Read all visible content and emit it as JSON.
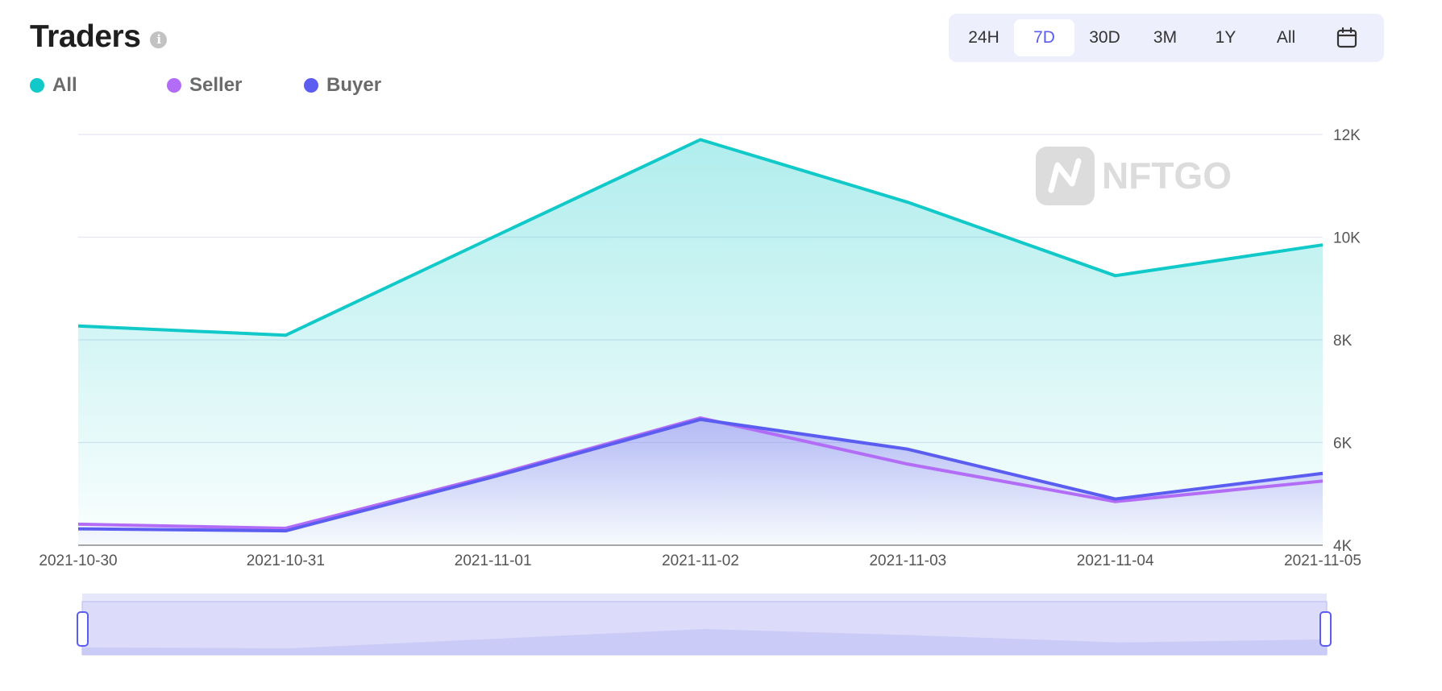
{
  "header": {
    "title": "Traders"
  },
  "legend": [
    {
      "label": "All",
      "color": "#12c9c9"
    },
    {
      "label": "Seller",
      "color": "#b26cf5"
    },
    {
      "label": "Buyer",
      "color": "#5b5cf0"
    }
  ],
  "range_buttons": [
    "24H",
    "7D",
    "30D",
    "3M",
    "1Y",
    "All"
  ],
  "range_selected": "7D",
  "watermark": "NFTGO",
  "chart_data": {
    "type": "area",
    "x": [
      "2021-10-30",
      "2021-10-31",
      "2021-11-01",
      "2021-11-02",
      "2021-11-03",
      "2021-11-04",
      "2021-11-05"
    ],
    "series": [
      {
        "name": "All",
        "color": "#12c9c9",
        "values": [
          8270,
          8090,
          10000,
          11900,
          10680,
          9250,
          9850
        ]
      },
      {
        "name": "Seller",
        "color": "#b26cf5",
        "values": [
          4410,
          4330,
          5360,
          6480,
          5580,
          4850,
          5250
        ]
      },
      {
        "name": "Buyer",
        "color": "#5b5cf0",
        "values": [
          4320,
          4280,
          5330,
          6450,
          5870,
          4900,
          5400
        ]
      }
    ],
    "yticks": [
      "4K",
      "6K",
      "8K",
      "10K",
      "12K"
    ],
    "ylim": [
      4000,
      12000
    ],
    "grid": true,
    "legend_position": "top-left",
    "zoom_window": [
      0,
      1
    ]
  }
}
